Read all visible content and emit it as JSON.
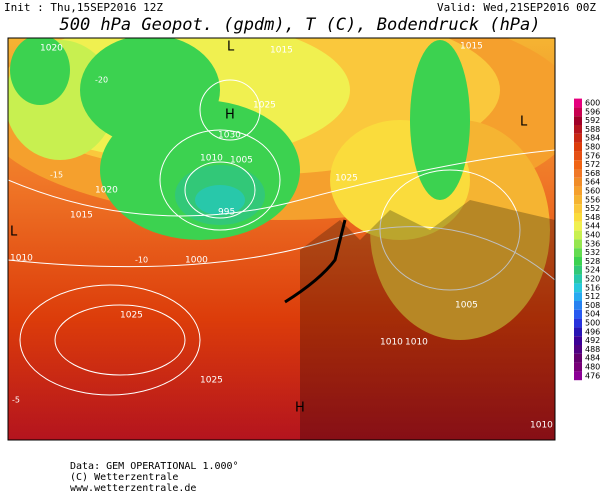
{
  "header": {
    "init": "Init : Thu,15SEP2016 12Z",
    "valid": "Valid: Wed,21SEP2016 00Z",
    "title": "500 hPa Geopot. (gpdm), T (C), Bodendruck (hPa)"
  },
  "colorbar": {
    "levels": [
      600,
      596,
      592,
      588,
      584,
      580,
      576,
      572,
      568,
      564,
      560,
      556,
      552,
      548,
      544,
      540,
      536,
      532,
      528,
      524,
      520,
      516,
      512,
      508,
      504,
      500,
      496,
      492,
      488,
      484,
      480,
      476
    ],
    "colors": [
      "#e6007e",
      "#c80050",
      "#a00028",
      "#b4141e",
      "#c82814",
      "#dc3c0a",
      "#e65014",
      "#f06414",
      "#f07828",
      "#f08c28",
      "#f5a02d",
      "#f5b432",
      "#fac83c",
      "#fadc3c",
      "#f0f050",
      "#c8f050",
      "#96e650",
      "#64dc50",
      "#3cd250",
      "#32c878",
      "#28c8aa",
      "#28c8dc",
      "#28aaf0",
      "#2882f0",
      "#285af0",
      "#2832dc",
      "#2814b4",
      "#3c0096",
      "#500082",
      "#64006e",
      "#780078",
      "#8c0096"
    ]
  },
  "map": {
    "labels": [
      "1020",
      "1015",
      "1015",
      "1030",
      "1010",
      "1005",
      "995",
      "1025",
      "1015",
      "1020",
      "1025",
      "1010",
      "1000",
      "1010",
      "1010",
      "1025",
      "1025",
      "1005",
      "1010",
      "H",
      "H",
      "L",
      "L",
      "L",
      "-20",
      "-15",
      "-10",
      "-5"
    ]
  },
  "footer": {
    "data": "Data: GEM OPERATIONAL 1.000°",
    "copyright": "(C) Wetterzentrale",
    "url": "www.wetterzentrale.de"
  }
}
